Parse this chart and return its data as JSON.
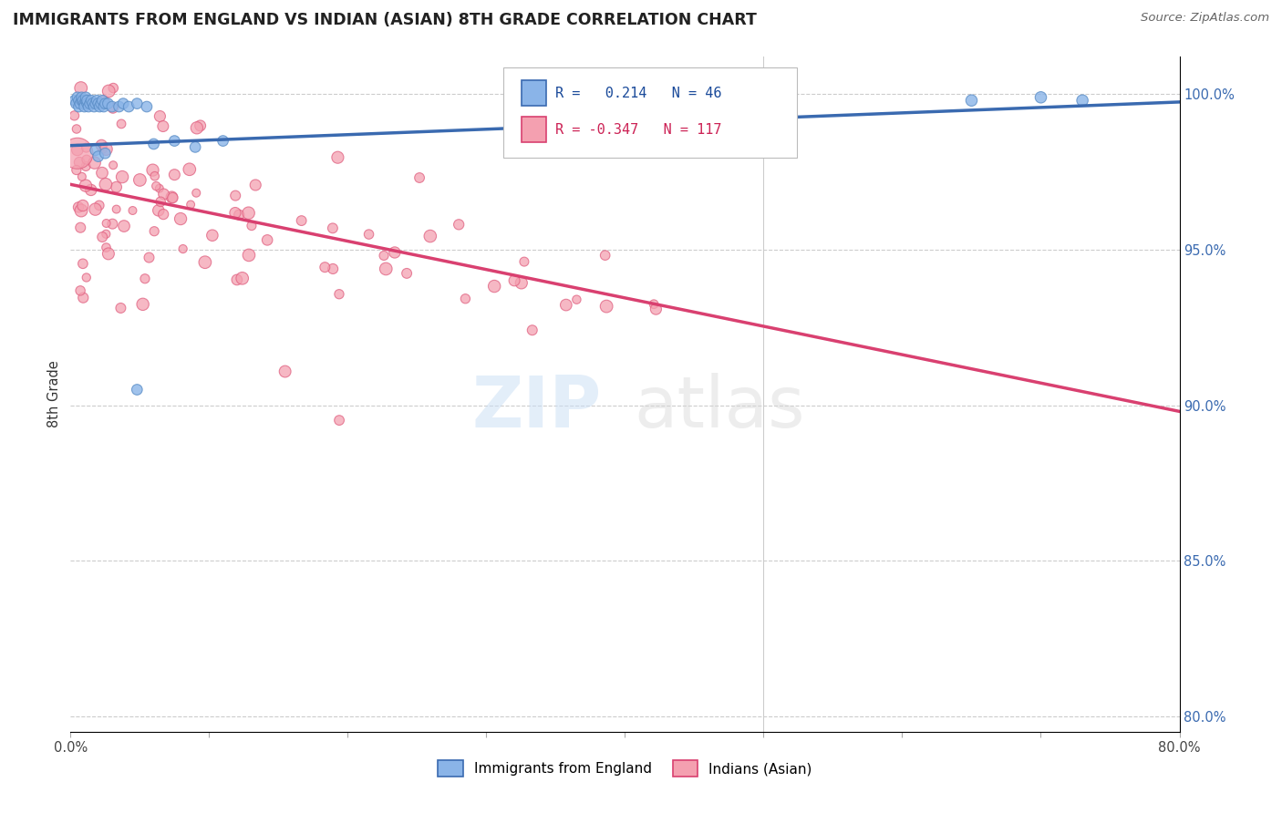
{
  "title": "IMMIGRANTS FROM ENGLAND VS INDIAN (ASIAN) 8TH GRADE CORRELATION CHART",
  "source": "Source: ZipAtlas.com",
  "ylabel": "8th Grade",
  "xlim": [
    0.0,
    0.8
  ],
  "ylim": [
    0.795,
    1.012
  ],
  "x_ticks": [
    0.0,
    0.1,
    0.2,
    0.3,
    0.4,
    0.5,
    0.6,
    0.7,
    0.8
  ],
  "x_tick_labels": [
    "0.0%",
    "",
    "",
    "",
    "",
    "",
    "",
    "",
    "80.0%"
  ],
  "y_ticks": [
    0.8,
    0.85,
    0.9,
    0.95,
    1.0
  ],
  "y_tick_labels": [
    "80.0%",
    "85.0%",
    "90.0%",
    "95.0%",
    "100.0%"
  ],
  "england_R": 0.214,
  "england_N": 46,
  "indian_R": -0.347,
  "indian_N": 117,
  "england_color": "#8ab4e8",
  "england_edge_color": "#5b8ec7",
  "indian_color": "#f4a0b0",
  "indian_edge_color": "#e06080",
  "england_line_color": "#3a6ab0",
  "indian_line_color": "#d94070",
  "legend_label_england": "Immigrants from England",
  "legend_label_indian": "Indians (Asian)",
  "england_line_x": [
    0.0,
    0.8
  ],
  "england_line_y": [
    0.9835,
    0.9975
  ],
  "indian_line_x": [
    0.0,
    0.8
  ],
  "indian_line_y": [
    0.971,
    0.898
  ],
  "grid_color": "#cccccc",
  "vertical_line_x": 0.5
}
